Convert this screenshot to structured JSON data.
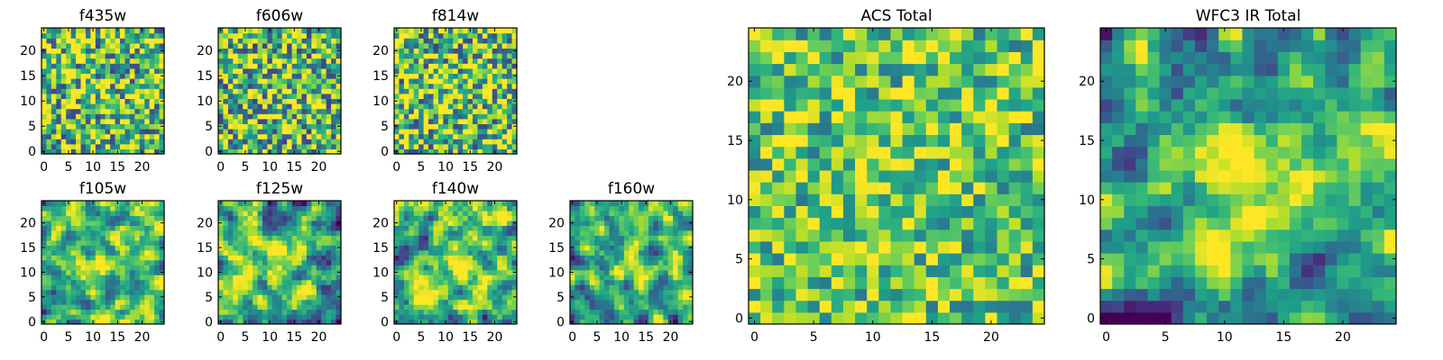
{
  "chart_data": [
    {
      "type": "heatmap",
      "title": "f435w",
      "grid": false,
      "x_ticks": [
        0,
        5,
        10,
        15,
        20
      ],
      "y_ticks": [
        0,
        5,
        10,
        15,
        20
      ],
      "xlim": [
        -0.5,
        24.5
      ],
      "ylim": [
        -0.5,
        24.5
      ],
      "colormap": "viridis"
    },
    {
      "type": "heatmap",
      "title": "f606w",
      "grid": false,
      "x_ticks": [
        0,
        5,
        10,
        15,
        20
      ],
      "y_ticks": [
        0,
        5,
        10,
        15,
        20
      ],
      "xlim": [
        -0.5,
        24.5
      ],
      "ylim": [
        -0.5,
        24.5
      ],
      "colormap": "viridis"
    },
    {
      "type": "heatmap",
      "title": "f814w",
      "grid": false,
      "x_ticks": [
        0,
        5,
        10,
        15,
        20
      ],
      "y_ticks": [
        0,
        5,
        10,
        15,
        20
      ],
      "xlim": [
        -0.5,
        24.5
      ],
      "ylim": [
        -0.5,
        24.5
      ],
      "colormap": "viridis"
    },
    {
      "type": "heatmap",
      "title": "f105w",
      "grid": false,
      "x_ticks": [
        0,
        5,
        10,
        15,
        20
      ],
      "y_ticks": [
        0,
        5,
        10,
        15,
        20
      ],
      "xlim": [
        -0.5,
        24.5
      ],
      "ylim": [
        -0.5,
        24.5
      ],
      "colormap": "viridis"
    },
    {
      "type": "heatmap",
      "title": "f125w",
      "grid": false,
      "x_ticks": [
        0,
        5,
        10,
        15,
        20
      ],
      "y_ticks": [
        0,
        5,
        10,
        15,
        20
      ],
      "xlim": [
        -0.5,
        24.5
      ],
      "ylim": [
        -0.5,
        24.5
      ],
      "colormap": "viridis"
    },
    {
      "type": "heatmap",
      "title": "f140w",
      "grid": false,
      "x_ticks": [
        0,
        5,
        10,
        15,
        20
      ],
      "y_ticks": [
        0,
        5,
        10,
        15,
        20
      ],
      "xlim": [
        -0.5,
        24.5
      ],
      "ylim": [
        -0.5,
        24.5
      ],
      "colormap": "viridis"
    },
    {
      "type": "heatmap",
      "title": "f160w",
      "grid": false,
      "x_ticks": [
        0,
        5,
        10,
        15,
        20
      ],
      "y_ticks": [
        0,
        5,
        10,
        15,
        20
      ],
      "xlim": [
        -0.5,
        24.5
      ],
      "ylim": [
        -0.5,
        24.5
      ],
      "colormap": "viridis"
    },
    {
      "type": "heatmap",
      "title": "ACS Total",
      "grid": false,
      "x_ticks": [
        0,
        5,
        10,
        15,
        20
      ],
      "y_ticks": [
        0,
        5,
        10,
        15,
        20
      ],
      "xlim": [
        -0.5,
        24.5
      ],
      "ylim": [
        -0.5,
        24.5
      ],
      "colormap": "viridis"
    },
    {
      "type": "heatmap",
      "title": "WFC3 IR Total",
      "grid": false,
      "x_ticks": [
        0,
        5,
        10,
        15,
        20
      ],
      "y_ticks": [
        0,
        5,
        10,
        15,
        20
      ],
      "xlim": [
        -0.5,
        24.5
      ],
      "ylim": [
        -0.5,
        24.5
      ],
      "colormap": "viridis"
    }
  ]
}
